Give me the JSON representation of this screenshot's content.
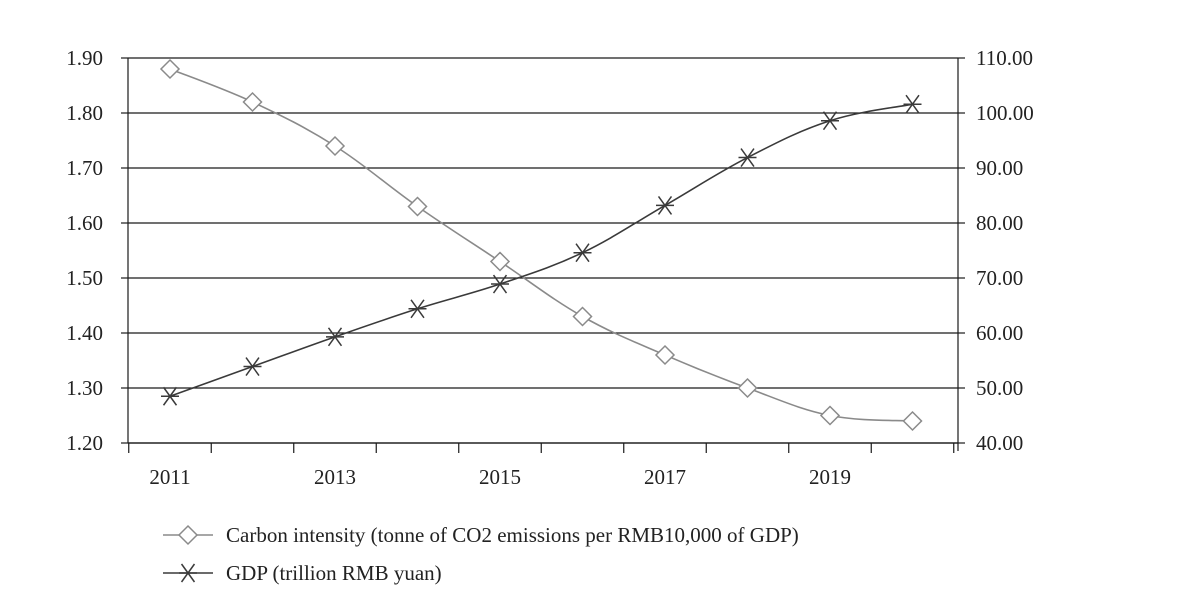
{
  "chart_data": {
    "type": "line",
    "title": "",
    "x": [
      2011,
      2012,
      2013,
      2014,
      2015,
      2016,
      2017,
      2018,
      2019,
      2020
    ],
    "x_tick_labels": [
      "2011",
      "2013",
      "2015",
      "2017",
      "2019"
    ],
    "y_left": {
      "range": [
        1.2,
        1.9
      ],
      "tick_labels": [
        "1.90",
        "1.80",
        "1.70",
        "1.60",
        "1.50",
        "1.40",
        "1.30",
        "1.20"
      ]
    },
    "y_right": {
      "range": [
        40,
        110
      ],
      "tick_labels": [
        "110.00",
        "100.00",
        "90.00",
        "80.00",
        "70.00",
        "60.00",
        "50.00",
        "40.00"
      ]
    },
    "grid": "horizontal",
    "legend_position": "bottom",
    "series": [
      {
        "name": "Carbon intensity (tonne of CO2 emissions per RMB10,000 of GDP)",
        "axis": "left",
        "marker": "diamond",
        "color": "#8a8a8a",
        "values": [
          1.88,
          1.82,
          1.74,
          1.63,
          1.53,
          1.43,
          1.36,
          1.3,
          1.25,
          1.24
        ]
      },
      {
        "name": "GDP (trillion RMB yuan)",
        "axis": "right",
        "marker": "asterisk",
        "color": "#3a3a3a",
        "values": [
          48.5,
          53.9,
          59.3,
          64.4,
          68.9,
          74.6,
          83.2,
          91.9,
          98.6,
          101.6
        ]
      }
    ]
  }
}
